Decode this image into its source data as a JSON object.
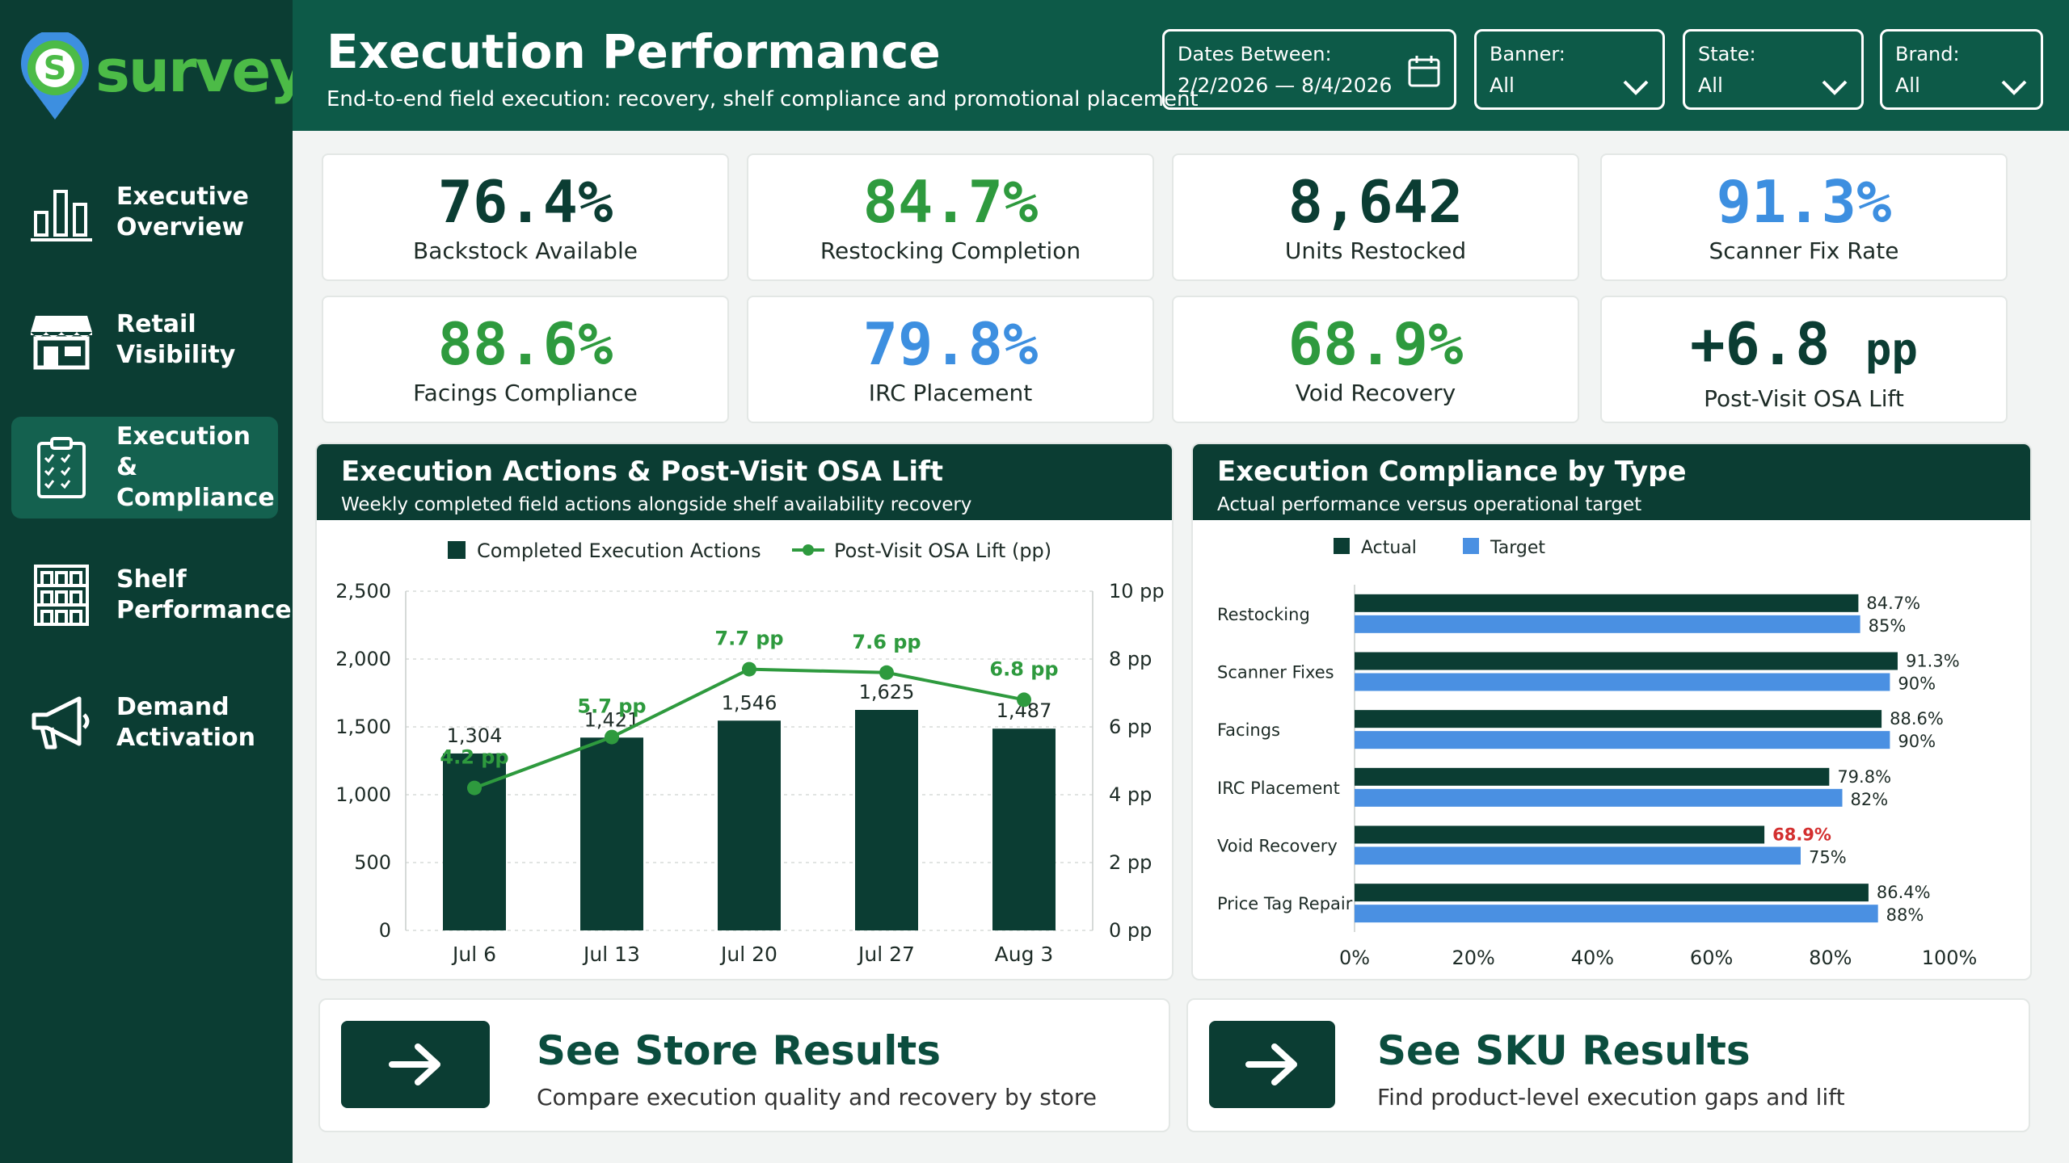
{
  "app": {
    "logo_text": "survey",
    "logo_letter": "S"
  },
  "sidebar": {
    "items": [
      {
        "label": "Executive\nOverview",
        "icon": "bar-chart-icon",
        "active": false
      },
      {
        "label": "Retail\nVisibility",
        "icon": "storefront-icon",
        "active": false
      },
      {
        "label": "Execution &\nCompliance",
        "icon": "clipboard-checklist-icon",
        "active": true
      },
      {
        "label": "Shelf\nPerformance",
        "icon": "shelf-icon",
        "active": false
      },
      {
        "label": "Demand\nActivation",
        "icon": "megaphone-icon",
        "active": false
      }
    ]
  },
  "header": {
    "title": "Execution Performance",
    "subtitle": "End-to-end field execution: recovery, shelf compliance and promotional placement",
    "filters": {
      "dates": {
        "label": "Dates Between:",
        "value": "2/2/2026 — 8/4/2026",
        "icon": "calendar-icon"
      },
      "banner": {
        "label": "Banner:",
        "value": "All",
        "icon": "chevron-down-icon"
      },
      "state": {
        "label": "State:",
        "value": "All",
        "icon": "chevron-down-icon"
      },
      "brand": {
        "label": "Brand:",
        "value": "All",
        "icon": "chevron-down-icon"
      }
    }
  },
  "kpis": [
    {
      "value": "76.4%",
      "label": "Backstock Available",
      "color": "#0b3d33"
    },
    {
      "value": "84.7%",
      "label": "Restocking Completion",
      "color": "#2e9a3e"
    },
    {
      "value": "8,642",
      "label": "Units Restocked",
      "color": "#0b3d33"
    },
    {
      "value": "91.3%",
      "label": "Scanner Fix Rate",
      "color": "#3d8fe0"
    },
    {
      "value": "88.6%",
      "label": "Facings Compliance",
      "color": "#2e9a3e"
    },
    {
      "value": "79.8%",
      "label": "IRC Placement",
      "color": "#3d8fe0"
    },
    {
      "value": "68.9%",
      "label": "Void Recovery",
      "color": "#2e9a3e"
    },
    {
      "value": "+6.8",
      "unit": "pp",
      "label": "Post-Visit OSA Lift",
      "color": "#0b3d33"
    }
  ],
  "panels": {
    "actions": {
      "title": "Execution Actions & Post-Visit OSA Lift",
      "subtitle": "Weekly completed field actions alongside shelf availability recovery"
    },
    "compliance": {
      "title": "Execution Compliance by Type",
      "subtitle": "Actual performance versus operational target"
    }
  },
  "chart_data": [
    {
      "type": "bar",
      "categories": [
        "Jul 6",
        "Jul 13",
        "Jul 20",
        "Jul 27",
        "Aug 3"
      ],
      "series": [
        {
          "name": "Completed Execution Actions",
          "type": "bar",
          "axis": "left",
          "values": [
            1304,
            1421,
            1546,
            1625,
            1487
          ],
          "labels": [
            "1,304",
            "1,421",
            "1,546",
            "1,625",
            "1,487"
          ],
          "color": "#0b3d33"
        },
        {
          "name": "Post-Visit OSA Lift (pp)",
          "type": "line",
          "axis": "right",
          "values": [
            4.2,
            5.7,
            7.7,
            7.6,
            6.8
          ],
          "labels": [
            "4.2 pp",
            "5.7 pp",
            "7.7 pp",
            "7.6 pp",
            "6.8 pp"
          ],
          "color": "#2e9a3e"
        }
      ],
      "y_left": {
        "ticks": [
          "0",
          "500",
          "1,000",
          "1,500",
          "2,000",
          "2,500"
        ],
        "ylim": [
          0,
          2500
        ]
      },
      "y_right": {
        "ticks": [
          "0 pp",
          "2 pp",
          "4 pp",
          "6 pp",
          "8 pp",
          "10 pp"
        ],
        "ylim": [
          0,
          10
        ]
      },
      "legend": "top"
    },
    {
      "type": "bar",
      "orientation": "horizontal",
      "categories": [
        "Restocking",
        "Scanner Fixes",
        "Facings",
        "IRC Placement",
        "Void Recovery",
        "Price Tag Repair"
      ],
      "series": [
        {
          "name": "Actual",
          "values": [
            84.7,
            91.3,
            88.6,
            79.8,
            68.9,
            86.4
          ],
          "labels": [
            "84.7%",
            "91.3%",
            "88.6%",
            "79.8%",
            "68.9%",
            "86.4%"
          ],
          "color": "#0b3d33"
        },
        {
          "name": "Target",
          "values": [
            85,
            90,
            90,
            82,
            75,
            88
          ],
          "labels": [
            "85%",
            "90%",
            "90%",
            "82%",
            "75%",
            "88%"
          ],
          "color": "#4a90e2"
        }
      ],
      "highlight_color": "#d32f2f",
      "x_ticks": [
        "0%",
        "20%",
        "40%",
        "60%",
        "80%",
        "100%"
      ],
      "xlim": [
        0,
        100
      ],
      "legend": "top"
    }
  ],
  "links": [
    {
      "title": "See Store Results",
      "subtitle": "Compare execution quality and recovery by store",
      "icon": "arrow-right-icon"
    },
    {
      "title": "See SKU Results",
      "subtitle": "Find product-level execution gaps and lift",
      "icon": "arrow-right-icon"
    }
  ]
}
